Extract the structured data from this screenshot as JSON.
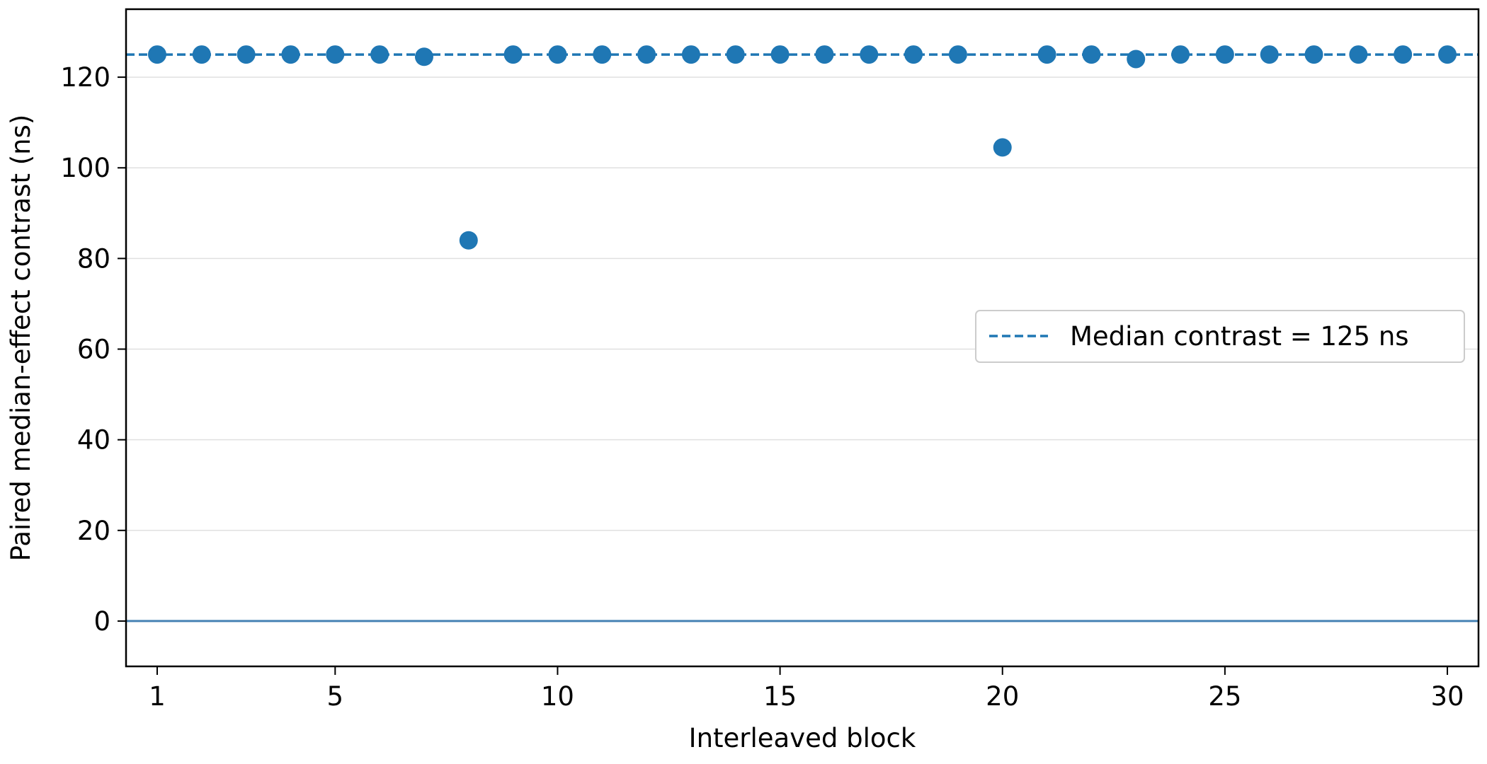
{
  "chart_data": {
    "type": "scatter",
    "title": "",
    "xlabel": "Interleaved block",
    "ylabel": "Paired median-effect contrast (ns)",
    "xlim": [
      0.3,
      30.7
    ],
    "ylim": [
      -10,
      135
    ],
    "xticks": [
      1,
      5,
      10,
      15,
      20,
      25,
      30
    ],
    "yticks": [
      0,
      20,
      40,
      60,
      80,
      100,
      120
    ],
    "grid": "horizontal",
    "colors": {
      "series": "#1f77b4",
      "zero_line": "#4682b4",
      "grid": "#e0e0e0"
    },
    "series": [
      {
        "x": [
          1,
          2,
          3,
          4,
          5,
          6,
          7,
          8,
          9,
          10,
          11,
          12,
          13,
          14,
          15,
          16,
          17,
          18,
          19,
          20,
          21,
          22,
          23,
          24,
          25,
          26,
          27,
          28,
          29,
          30
        ],
        "y": [
          125,
          125,
          125,
          125,
          125,
          125,
          124.5,
          84,
          125,
          125,
          125,
          125,
          125,
          125,
          125,
          125,
          125,
          125,
          125,
          104.5,
          125,
          125,
          124,
          125,
          125,
          125,
          125,
          125,
          125,
          125
        ]
      }
    ],
    "reference_lines": [
      {
        "y": 125,
        "style": "dashed",
        "label": "Median contrast = 125 ns"
      },
      {
        "y": 0,
        "style": "solid"
      }
    ],
    "legend": {
      "placement": "center-right",
      "entries": [
        "Median contrast = 125 ns"
      ]
    }
  }
}
